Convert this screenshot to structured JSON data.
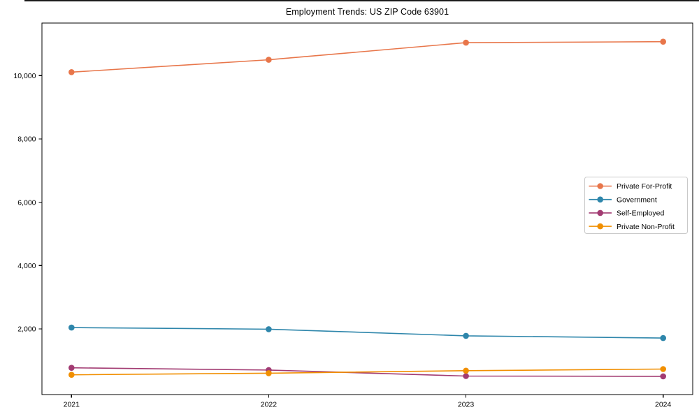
{
  "chart_data": {
    "type": "line",
    "title": "Employment Trends: US ZIP Code 63901",
    "xlabel": "",
    "ylabel": "",
    "x": [
      2021,
      2022,
      2023,
      2024
    ],
    "x_tick_labels": [
      "2021",
      "2022",
      "2023",
      "2024"
    ],
    "y_ticks": [
      2000,
      4000,
      6000,
      8000,
      10000
    ],
    "y_tick_labels": [
      "2,000",
      "4,000",
      "6,000",
      "8,000",
      "10,000"
    ],
    "xlim": [
      2020.85,
      2024.15
    ],
    "ylim": [
      -75,
      11660
    ],
    "grid": false,
    "marker": "circle",
    "legend_position": "center right",
    "series": [
      {
        "name": "Private For-Profit",
        "color": "#E8764A",
        "values": [
          10110,
          10500,
          11040,
          11070
        ]
      },
      {
        "name": "Government",
        "color": "#2E86AB",
        "values": [
          2040,
          1990,
          1780,
          1710
        ]
      },
      {
        "name": "Self-Employed",
        "color": "#A23B72",
        "values": [
          770,
          700,
          510,
          500
        ]
      },
      {
        "name": "Private Non-Profit",
        "color": "#F18F01",
        "values": [
          550,
          600,
          680,
          730
        ]
      }
    ],
    "frame_color": "#000000",
    "tick_color": "#000000",
    "text_color": "#000000",
    "legend_border_color": "#c9c9c9",
    "legend_bg_color": "#ffffff"
  }
}
